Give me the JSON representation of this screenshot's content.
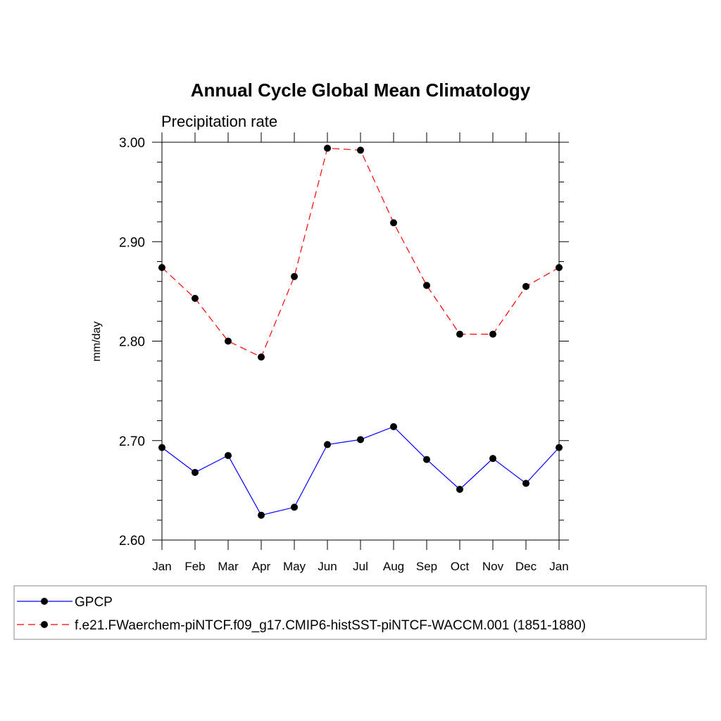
{
  "chart_data": {
    "type": "line",
    "title": "Annual Cycle Global Mean Climatology",
    "subtitle": "Precipitation rate",
    "xlabel": "",
    "ylabel": "mm/day",
    "categories": [
      "Jan",
      "Feb",
      "Mar",
      "Apr",
      "May",
      "Jun",
      "Jul",
      "Aug",
      "Sep",
      "Oct",
      "Nov",
      "Dec",
      "Jan"
    ],
    "ylim": [
      2.6,
      3.0
    ],
    "yticks": [
      2.6,
      2.7,
      2.8,
      2.9,
      3.0
    ],
    "ytick_labels": [
      "2.60",
      "2.70",
      "2.80",
      "2.90",
      "3.00"
    ],
    "grid": false,
    "legend_position": "bottom",
    "series": [
      {
        "name": "GPCP",
        "color": "#0000ff",
        "line_style": "solid",
        "marker": "filled-circle",
        "values": [
          2.693,
          2.668,
          2.685,
          2.625,
          2.633,
          2.696,
          2.701,
          2.714,
          2.681,
          2.651,
          2.682,
          2.657,
          2.693
        ]
      },
      {
        "name": "f.e21.FWaerchem-piNTCF.f09_g17.CMIP6-histSST-piNTCF-WACCM.001 (1851-1880)",
        "color": "#ff0000",
        "line_style": "dashed",
        "marker": "filled-circle",
        "values": [
          2.874,
          2.843,
          2.8,
          2.784,
          2.865,
          2.994,
          2.992,
          2.919,
          2.856,
          2.807,
          2.807,
          2.855,
          2.874
        ]
      }
    ]
  }
}
